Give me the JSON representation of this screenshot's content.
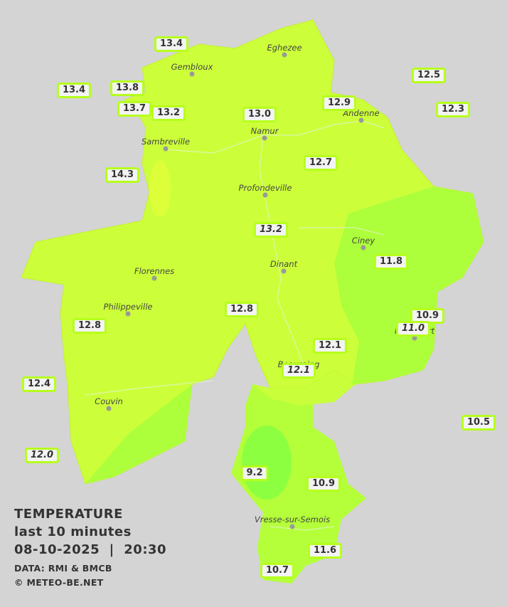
{
  "legend": {
    "title": "TEMPERATURE",
    "period": "last 10 minutes",
    "datetime": "08-10-2025  |  20:30",
    "source": "DATA: RMI & BMCB",
    "copyright": "© METEO-BE.NET"
  },
  "cities": [
    "Eghezee",
    "Gembloux",
    "Andenne",
    "Namur",
    "Sambreville",
    "Profondeville",
    "Ciney",
    "Dinant",
    "Florennes",
    "Philippeville",
    "Rochefort",
    "Beauraing",
    "Couvin",
    "Vresse-sur-Semois"
  ],
  "stations": [
    "13.4",
    "13.4",
    "13.8",
    "13.7",
    "13.2",
    "13.0",
    "12.9",
    "12.5",
    "12.3",
    "14.3",
    "12.7",
    "13.2",
    "11.8",
    "12.8",
    "12.8",
    "10.9",
    "11.0",
    "12.1",
    "12.1",
    "12.4",
    "10.5",
    "12.0",
    "9.2",
    "10.9",
    "11.6",
    "10.7"
  ]
}
